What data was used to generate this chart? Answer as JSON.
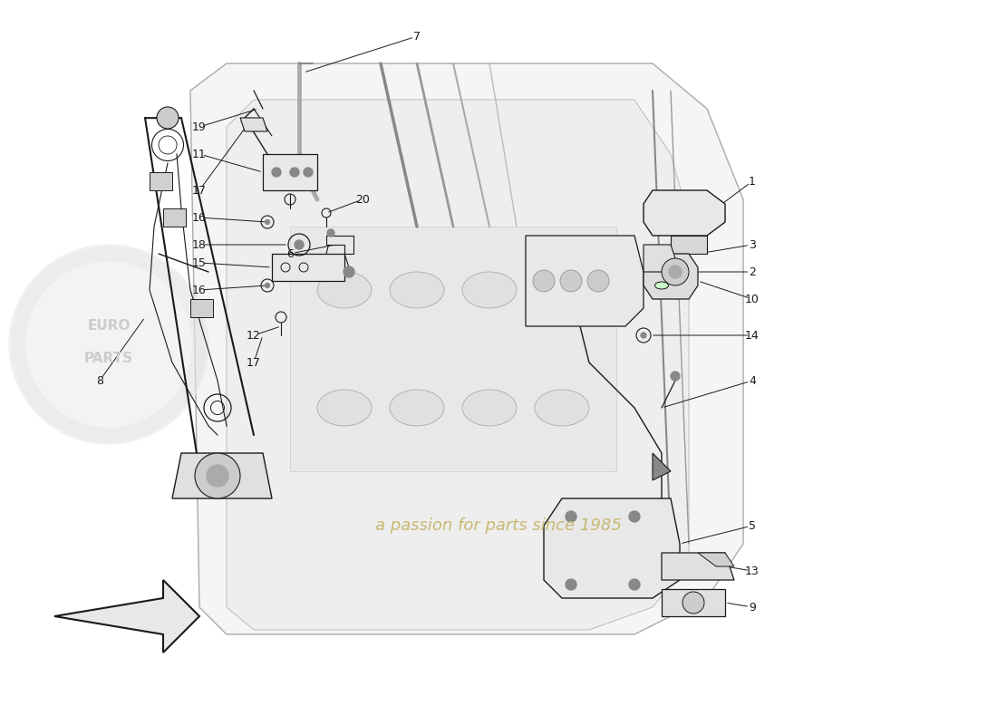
{
  "background_color": "#ffffff",
  "line_color": "#1a1a1a",
  "label_color": "#1a1a1a",
  "watermark_text": "a passion for parts since 1985",
  "watermark_color": "#c8b870",
  "logo_text": "EUROPARTS",
  "fig_width": 11.0,
  "fig_height": 8.0,
  "dpi": 100,
  "label_fontsize": 9,
  "watermark_fontsize": 13
}
